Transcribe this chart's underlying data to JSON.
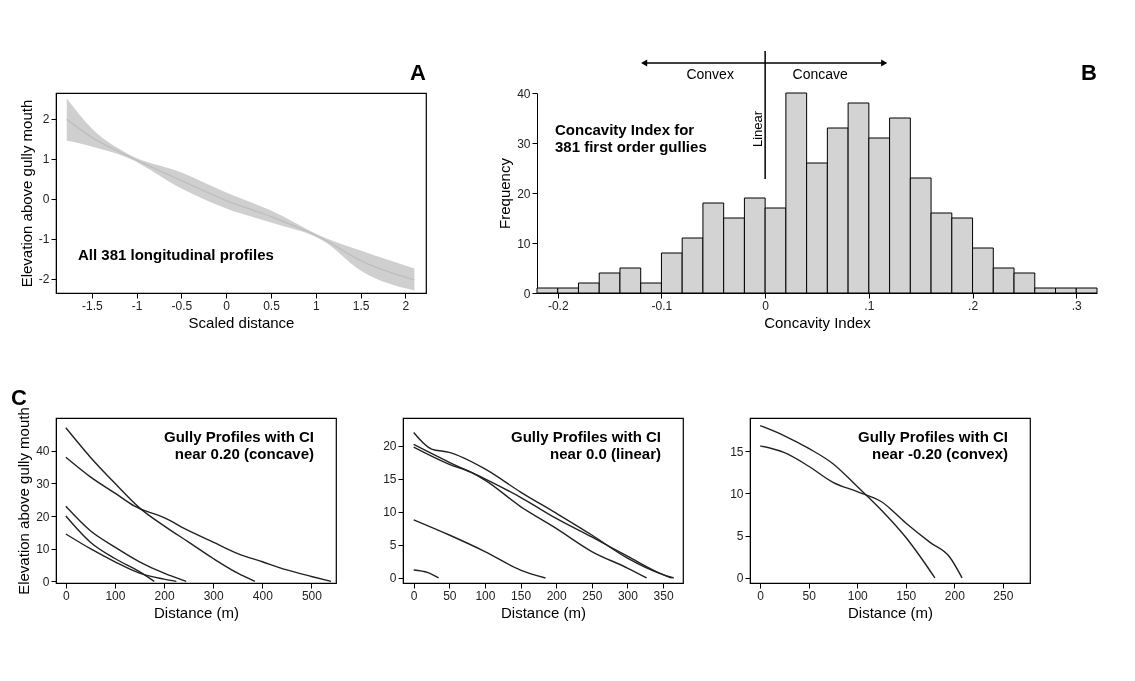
{
  "chart_data": [
    {
      "type": "line",
      "xlabel": "Scaled distance",
      "ylabel": "Elevation above gully mouth",
      "annotations": [
        "A",
        "All 381 longitudinal profiles"
      ],
      "xlim": [
        -1.9,
        2.23
      ],
      "ylim": [
        -2.36,
        2.64
      ],
      "xticks": [
        -1.5,
        -1,
        -0.5,
        0,
        0.5,
        1,
        1.5,
        2
      ],
      "yticks": [
        -2,
        -1,
        0,
        1,
        2
      ],
      "series": [
        {
          "color": "#bfbfbf",
          "x": [
            -1.78,
            -1.5,
            -1.1,
            -0.5,
            0,
            0.5,
            1.1,
            1.5,
            2.1
          ],
          "values": [
            1.98,
            1.53,
            1.07,
            0.45,
            -0.05,
            -0.45,
            -1.03,
            -1.55,
            -2.03
          ],
          "lower": [
            1.45,
            1.3,
            1.02,
            0.25,
            -0.25,
            -0.6,
            -1.08,
            -1.8,
            -2.3
          ],
          "upper": [
            2.5,
            1.75,
            1.12,
            0.65,
            0.15,
            -0.3,
            -0.98,
            -1.3,
            -1.75
          ]
        }
      ]
    },
    {
      "type": "histogram",
      "title": "Concavity Index for\n381 first order gullies",
      "xlabel": "Concavity Index",
      "ylabel": "Frequency",
      "annotations": [
        "B",
        "Convex",
        "Concave"
      ],
      "color": "#d3d3d3",
      "bins": [
        -0.22,
        -0.2,
        -0.18,
        -0.16,
        -0.14,
        -0.12,
        -0.1,
        -0.08,
        -0.06,
        -0.04,
        -0.02,
        0,
        0.02,
        0.04,
        0.06,
        0.08,
        0.1,
        0.12,
        0.14,
        0.16,
        0.18,
        0.2,
        0.22,
        0.24,
        0.26,
        0.28,
        0.3,
        0.32
      ],
      "values": [
        1,
        1,
        2,
        4,
        5,
        2,
        8,
        11,
        18,
        15,
        19,
        17,
        40,
        26,
        33,
        38,
        31,
        35,
        23,
        16,
        15,
        9,
        5,
        4,
        1,
        1,
        1
      ],
      "xlim": [
        -0.22,
        0.32
      ],
      "ylim": [
        0,
        40
      ],
      "xticks": [
        {
          "value": -0.2,
          "label": "-0.2"
        },
        {
          "value": -0.1,
          "label": "-0.1"
        },
        0,
        {
          "value": 0.1,
          "label": ".1"
        },
        {
          "value": 0.2,
          "label": ".2"
        },
        {
          "value": 0.3,
          "label": ".3"
        }
      ],
      "yticks": [
        0,
        10,
        20,
        30,
        40
      ],
      "ref_lines": [
        {
          "axis": "x",
          "value": 0,
          "label": "Linear",
          "color": "#000000"
        }
      ]
    },
    {
      "type": "line",
      "title": "Gully Profiles with CI\nnear 0.20 (concave)",
      "xlabel": "Distance (m)",
      "ylabel": "Elevation above gully mouth",
      "annotations": [
        "C"
      ],
      "xlim": [
        -20,
        550
      ],
      "ylim": [
        -0.5,
        50
      ],
      "xticks": [
        0,
        100,
        200,
        300,
        400,
        500
      ],
      "yticks": [
        0,
        10,
        20,
        30,
        40
      ],
      "series": [
        {
          "color": "#222222",
          "x": [
            0,
            50,
            100,
            150,
            200,
            250,
            300,
            350,
            385
          ],
          "values": [
            47,
            38,
            30,
            22.5,
            17,
            12,
            7,
            2.5,
            0
          ]
        },
        {
          "color": "#222222",
          "x": [
            0,
            50,
            100,
            140,
            200,
            250,
            300,
            350,
            400,
            450,
            500,
            540
          ],
          "values": [
            38,
            32,
            27,
            23,
            19.5,
            15.5,
            12,
            8.5,
            6,
            3.5,
            1.5,
            0
          ]
        },
        {
          "color": "#222222",
          "x": [
            0,
            50,
            100,
            150,
            200,
            245
          ],
          "values": [
            23,
            15.5,
            10.5,
            6,
            2.5,
            0
          ]
        },
        {
          "color": "#222222",
          "x": [
            0,
            50,
            100,
            150,
            180
          ],
          "values": [
            20,
            12,
            7,
            3,
            0
          ]
        },
        {
          "color": "#222222",
          "x": [
            0,
            50,
            100,
            150,
            200,
            225
          ],
          "values": [
            14.5,
            10,
            6,
            2.5,
            0.7,
            0
          ]
        }
      ]
    },
    {
      "type": "line",
      "title": "Gully Profiles with CI\nnear 0.0 (linear)",
      "xlabel": "Distance (m)",
      "xlim": [
        -15,
        378
      ],
      "ylim": [
        -0.76,
        24.2
      ],
      "xticks": [
        0,
        50,
        100,
        150,
        200,
        250,
        300,
        350
      ],
      "yticks": [
        0,
        5,
        10,
        15,
        20
      ],
      "series": [
        {
          "color": "#222222",
          "x": [
            0,
            25,
            50,
            100,
            150,
            200,
            250,
            300,
            350,
            365
          ],
          "values": [
            22,
            19.5,
            19,
            16.5,
            13,
            9.8,
            6.5,
            3,
            0.5,
            0
          ]
        },
        {
          "color": "#222222",
          "x": [
            0,
            50,
            100,
            150,
            200,
            250,
            300,
            350,
            362
          ],
          "values": [
            20.2,
            17.5,
            15,
            12.2,
            9,
            6.2,
            3.3,
            0.5,
            0
          ]
        },
        {
          "color": "#222222",
          "x": [
            0,
            50,
            80,
            100,
            150,
            200,
            250,
            300,
            327
          ],
          "values": [
            19.8,
            17.2,
            16,
            14.8,
            10.8,
            7.5,
            4,
            1.5,
            0
          ]
        },
        {
          "color": "#222222",
          "x": [
            0,
            50,
            100,
            150,
            185
          ],
          "values": [
            8.8,
            6.5,
            4,
            1.2,
            0
          ]
        },
        {
          "color": "#222222",
          "x": [
            0,
            20,
            35
          ],
          "values": [
            1.2,
            0.8,
            0
          ]
        }
      ]
    },
    {
      "type": "line",
      "title": "Gully Profiles with CI\nnear -0.20 (convex)",
      "xlabel": "Distance (m)",
      "xlim": [
        -10.5,
        278
      ],
      "ylim": [
        -0.6,
        18.9
      ],
      "xticks": [
        0,
        50,
        100,
        150,
        200,
        250
      ],
      "yticks": [
        0,
        5,
        10,
        15
      ],
      "series": [
        {
          "color": "#222222",
          "x": [
            0,
            25,
            50,
            75,
            100,
            125,
            150,
            165,
            180
          ],
          "values": [
            18,
            16.8,
            15.3,
            13.5,
            10.8,
            8,
            4.8,
            2.5,
            0
          ]
        },
        {
          "color": "#222222",
          "x": [
            0,
            25,
            50,
            75,
            100,
            125,
            150,
            175,
            195,
            208
          ],
          "values": [
            15.6,
            14.8,
            13.2,
            11.3,
            10.2,
            9,
            6.5,
            4.2,
            2.5,
            0
          ]
        }
      ]
    }
  ]
}
